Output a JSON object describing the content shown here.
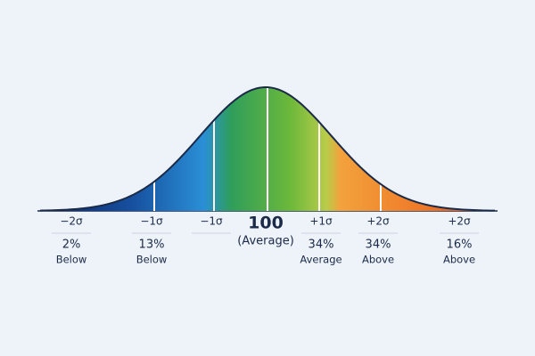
{
  "columns": [
    {
      "top": "−2σ",
      "percent": "2%",
      "caption": "Below"
    },
    {
      "top": "−1σ",
      "percent": "13%",
      "caption": "Below"
    },
    {
      "top": "−1σ"
    },
    {
      "top": "100",
      "caption": "(Average)"
    },
    {
      "top": "+1σ",
      "percent": "34%",
      "caption": "Average"
    },
    {
      "top": "+2σ",
      "percent": "34%",
      "caption": "Above"
    },
    {
      "top": "+2σ",
      "percent": "16%",
      "caption": "Above"
    }
  ]
}
